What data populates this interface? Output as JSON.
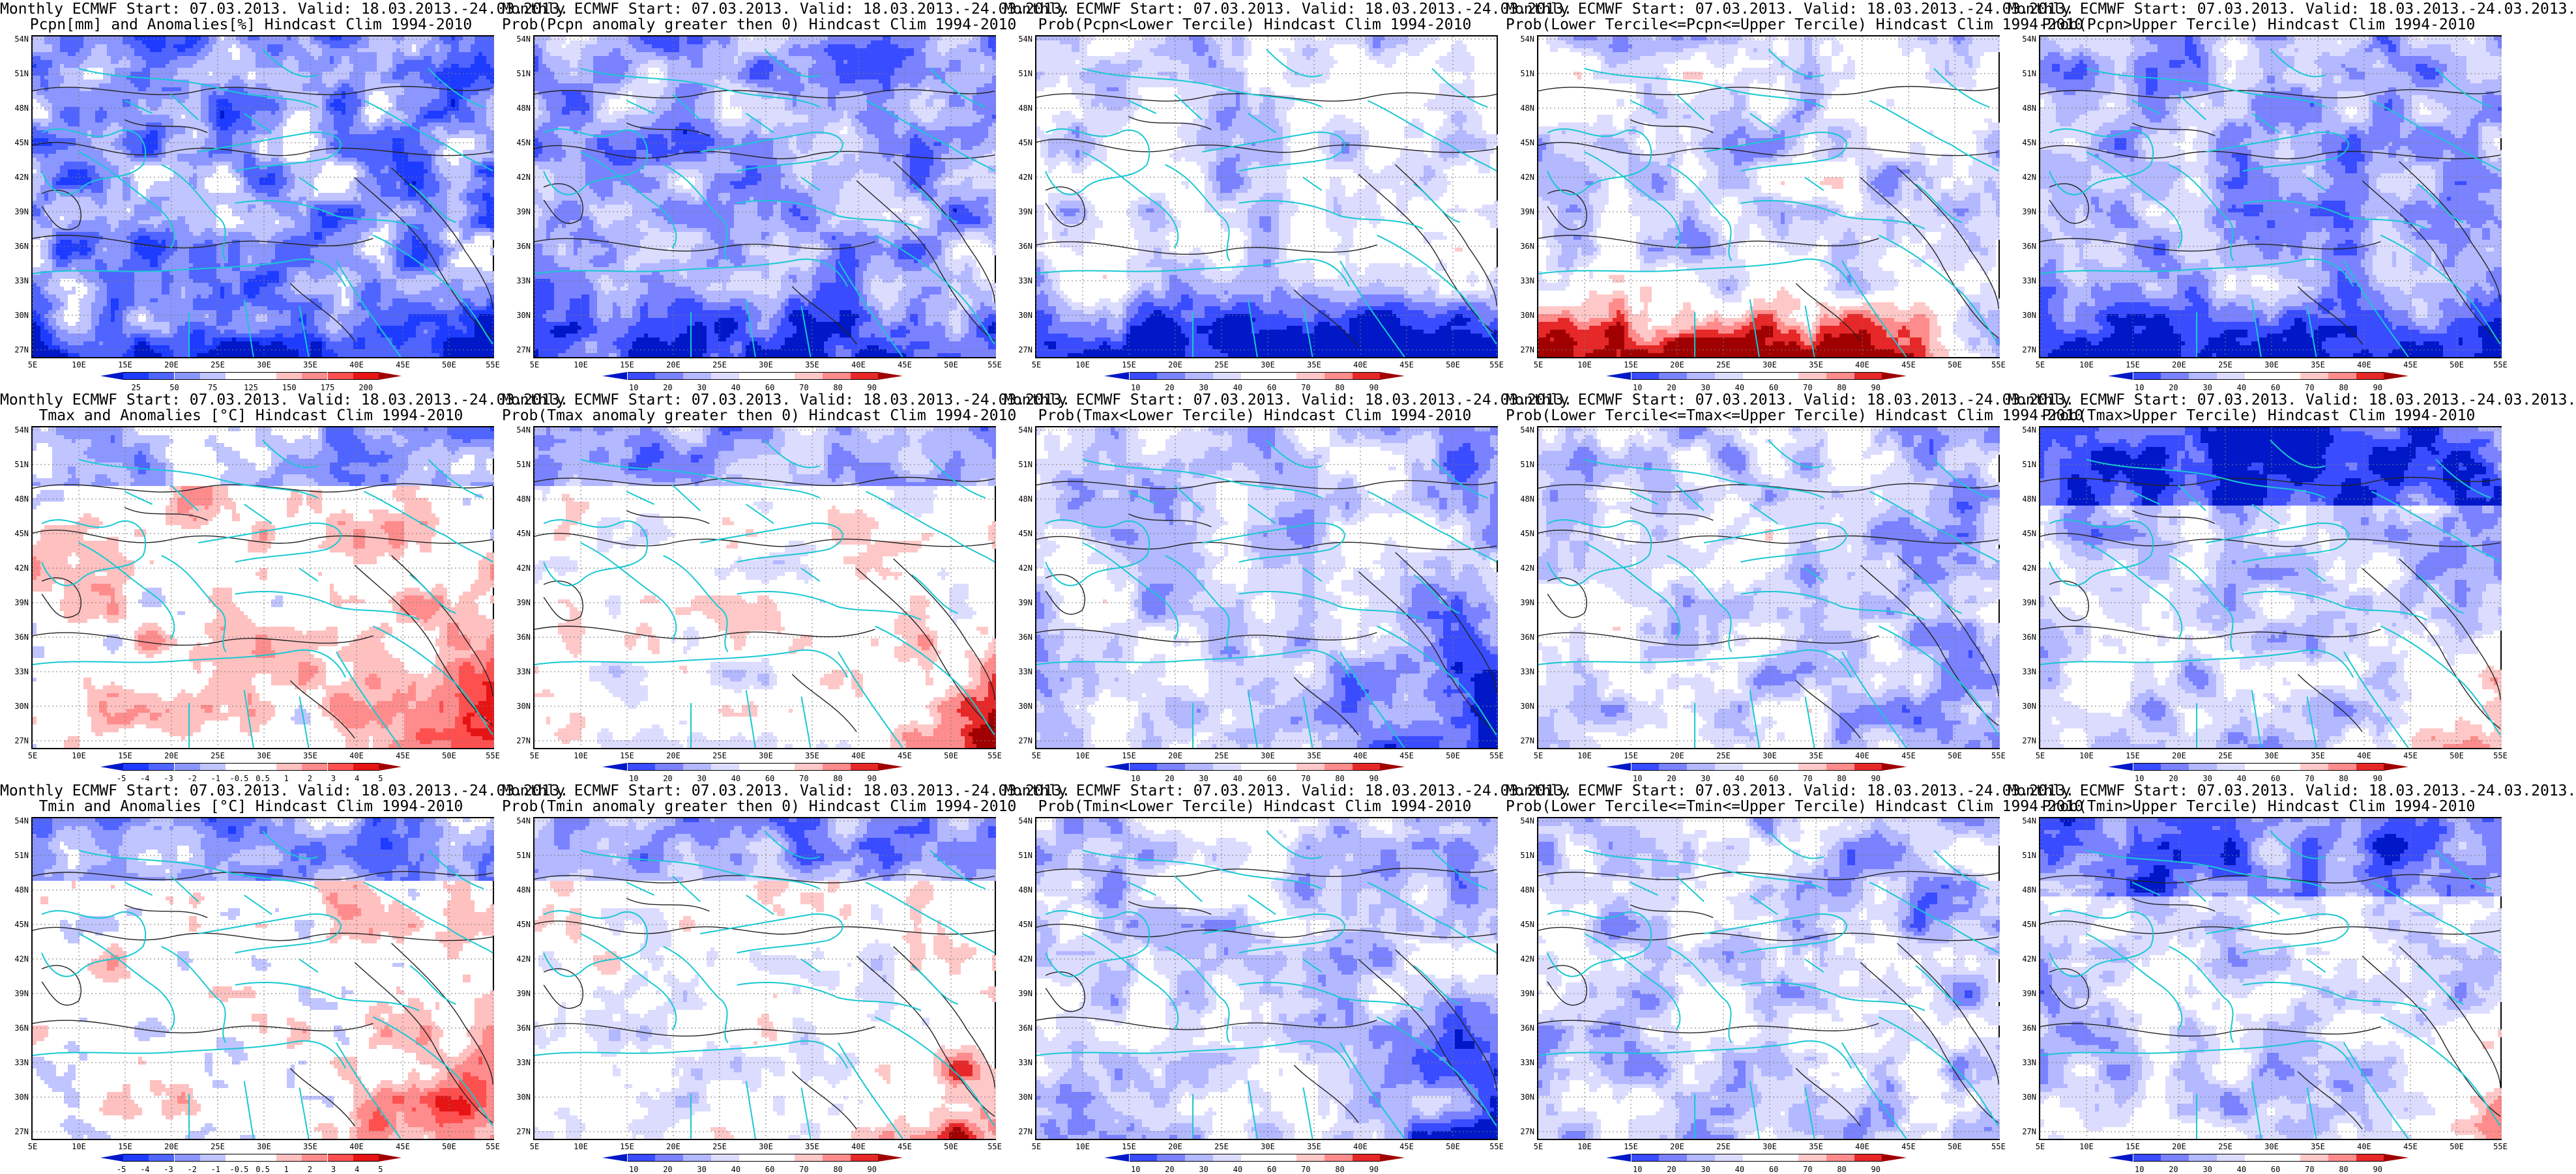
{
  "palettes": {
    "anom": [
      "#0018c8",
      "#1e3cff",
      "#5064ff",
      "#8c96ff",
      "#c0c4ff",
      "#ffffff",
      "#ffffff",
      "#ffc0c0",
      "#ff8c8c",
      "#ff5050",
      "#e61414",
      "#a00000"
    ],
    "prob": [
      "#0018c8",
      "#3a4cff",
      "#7a82ff",
      "#b3b8ff",
      "#dcdcff",
      "#ffffff",
      "#ffffff",
      "#ffc8c8",
      "#ff8c8c",
      "#e62828",
      "#a00000"
    ]
  },
  "colorbar_labels": {
    "pcpn": [
      "25",
      "50",
      "75",
      "125",
      "150",
      "175",
      "200"
    ],
    "temp": [
      "-5",
      "-4",
      "-3",
      "-2",
      "-1",
      "-0.5",
      "0.5",
      "1",
      "2",
      "3",
      "4",
      "5"
    ],
    "prob": [
      "10",
      "20",
      "30",
      "40",
      "60",
      "70",
      "80",
      "90"
    ]
  },
  "lat_labels": [
    "54N",
    "51N",
    "48N",
    "45N",
    "42N",
    "39N",
    "36N",
    "33N",
    "30N",
    "27N"
  ],
  "lon_labels": [
    "5E",
    "10E",
    "15E",
    "20E",
    "25E",
    "30E",
    "35E",
    "40E",
    "45E",
    "50E",
    "55E"
  ],
  "panels": [
    {
      "title1": "Monthly ECMWF Start: 07.03.2013. Valid: 18.03.2013.-24.03.2013.",
      "title2": "Pcpn[mm] and Anomalies[%] Hindcast Clim 1994-2010",
      "palette": "anom",
      "labels": "pcpn",
      "variable": "pcpn",
      "field": "pcpn-anomaly"
    },
    {
      "title1": "Monthly ECMWF Start: 07.03.2013. Valid: 18.03.2013.-24.03.2013.",
      "title2": "Prob(Pcpn anomaly greater then 0) Hindcast Clim 1994-2010",
      "palette": "prob",
      "labels": "prob",
      "variable": "pcpn",
      "field": "prob-positive"
    },
    {
      "title1": "Monthly ECMWF Start: 07.03.2013. Valid: 18.03.2013.-24.03.2013.",
      "title2": "Prob(Pcpn<Lower Tercile) Hindcast Clim 1994-2010",
      "palette": "prob",
      "labels": "prob",
      "variable": "pcpn",
      "field": "prob-lower"
    },
    {
      "title1": "Monthly ECMWF Start: 07.03.2013. Valid: 18.03.2013.-24.03.2013.",
      "title2": "Prob(Lower Tercile<=Pcpn<=Upper Tercile) Hindcast Clim 1994-2010",
      "palette": "prob",
      "labels": "prob",
      "variable": "pcpn",
      "field": "prob-middle"
    },
    {
      "title1": "Monthly ECMWF Start: 07.03.2013. Valid: 18.03.2013.-24.03.2013.",
      "title2": "Prob(Pcpn>Upper Tercile) Hindcast Clim 1994-2010",
      "palette": "prob",
      "labels": "prob",
      "variable": "pcpn",
      "field": "prob-upper"
    },
    {
      "title1": "Monthly ECMWF Start: 07.03.2013. Valid: 18.03.2013.-24.03.2013.",
      "title2": "Tmax and Anomalies [°C] Hindcast Clim 1994-2010",
      "palette": "anom",
      "labels": "temp",
      "variable": "tmax",
      "field": "temp-anomaly"
    },
    {
      "title1": "Monthly ECMWF Start: 07.03.2013. Valid: 18.03.2013.-24.03.2013.",
      "title2": "Prob(Tmax anomaly greater then 0) Hindcast Clim 1994-2010",
      "palette": "prob",
      "labels": "prob",
      "variable": "tmax",
      "field": "prob-positive"
    },
    {
      "title1": "Monthly ECMWF Start: 07.03.2013. Valid: 18.03.2013.-24.03.2013.",
      "title2": "Prob(Tmax<Lower Tercile) Hindcast Clim 1994-2010",
      "palette": "prob",
      "labels": "prob",
      "variable": "tmax",
      "field": "prob-lower"
    },
    {
      "title1": "Monthly ECMWF Start: 07.03.2013. Valid: 18.03.2013.-24.03.2013.",
      "title2": "Prob(Lower Tercile<=Tmax<=Upper Tercile) Hindcast Clim 1994-2010",
      "palette": "prob",
      "labels": "prob",
      "variable": "tmax",
      "field": "prob-middle"
    },
    {
      "title1": "Monthly ECMWF Start: 07.03.2013. Valid: 18.03.2013.-24.03.2013.",
      "title2": "Prob(Tmax>Upper Tercile) Hindcast Clim 1994-2010",
      "palette": "prob",
      "labels": "prob",
      "variable": "tmax",
      "field": "prob-upper"
    },
    {
      "title1": "Monthly ECMWF Start: 07.03.2013. Valid: 18.03.2013.-24.03.2013.",
      "title2": "Tmin and Anomalies [°C] Hindcast Clim 1994-2010",
      "palette": "anom",
      "labels": "temp",
      "variable": "tmin",
      "field": "temp-anomaly"
    },
    {
      "title1": "Monthly ECMWF Start: 07.03.2013. Valid: 18.03.2013.-24.03.2013.",
      "title2": "Prob(Tmin anomaly greater then 0) Hindcast Clim 1994-2010",
      "palette": "prob",
      "labels": "prob",
      "variable": "tmin",
      "field": "prob-positive"
    },
    {
      "title1": "Monthly ECMWF Start: 07.03.2013. Valid: 18.03.2013.-24.03.2013.",
      "title2": "Prob(Tmin<Lower Tercile) Hindcast Clim 1994-2010",
      "palette": "prob",
      "labels": "prob",
      "variable": "tmin",
      "field": "prob-lower"
    },
    {
      "title1": "Monthly ECMWF Start: 07.03.2013. Valid: 18.03.2013.-24.03.2013.",
      "title2": "Prob(Lower Tercile<=Tmin<=Upper Tercile) Hindcast Clim 1994-2010",
      "palette": "prob",
      "labels": "prob",
      "variable": "tmin",
      "field": "prob-middle"
    },
    {
      "title1": "Monthly ECMWF Start: 07.03.2013. Valid: 18.03.2013.-24.03.2013.",
      "title2": "Prob(Tmin>Upper Tercile) Hindcast Clim 1994-2010",
      "palette": "prob",
      "labels": "prob",
      "variable": "tmin",
      "field": "prob-upper"
    }
  ]
}
